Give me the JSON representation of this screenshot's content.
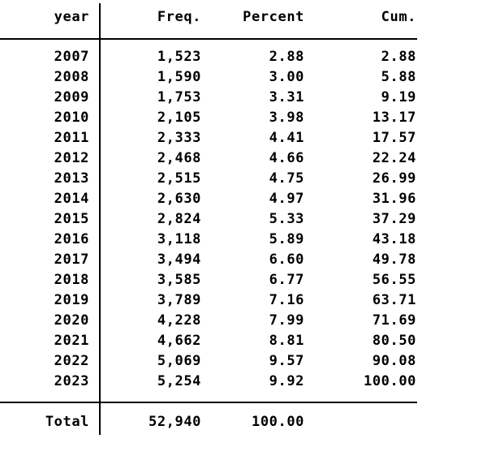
{
  "table": {
    "columns": [
      "year",
      "Freq.",
      "Percent",
      "Cum."
    ],
    "rows": [
      [
        "2007",
        "1,523",
        "2.88",
        "2.88"
      ],
      [
        "2008",
        "1,590",
        "3.00",
        "5.88"
      ],
      [
        "2009",
        "1,753",
        "3.31",
        "9.19"
      ],
      [
        "2010",
        "2,105",
        "3.98",
        "13.17"
      ],
      [
        "2011",
        "2,333",
        "4.41",
        "17.57"
      ],
      [
        "2012",
        "2,468",
        "4.66",
        "22.24"
      ],
      [
        "2013",
        "2,515",
        "4.75",
        "26.99"
      ],
      [
        "2014",
        "2,630",
        "4.97",
        "31.96"
      ],
      [
        "2015",
        "2,824",
        "5.33",
        "37.29"
      ],
      [
        "2016",
        "3,118",
        "5.89",
        "43.18"
      ],
      [
        "2017",
        "3,494",
        "6.60",
        "49.78"
      ],
      [
        "2018",
        "3,585",
        "6.77",
        "56.55"
      ],
      [
        "2019",
        "3,789",
        "7.16",
        "63.71"
      ],
      [
        "2020",
        "4,228",
        "7.99",
        "71.69"
      ],
      [
        "2021",
        "4,662",
        "8.81",
        "80.50"
      ],
      [
        "2022",
        "5,069",
        "9.57",
        "90.08"
      ],
      [
        "2023",
        "5,254",
        "9.92",
        "100.00"
      ]
    ],
    "total": {
      "label": "Total",
      "freq": "52,940",
      "percent": "100.00",
      "cum": ""
    }
  },
  "colors": {
    "background": "#ffffff",
    "text": "#000000",
    "line": "#000000"
  }
}
